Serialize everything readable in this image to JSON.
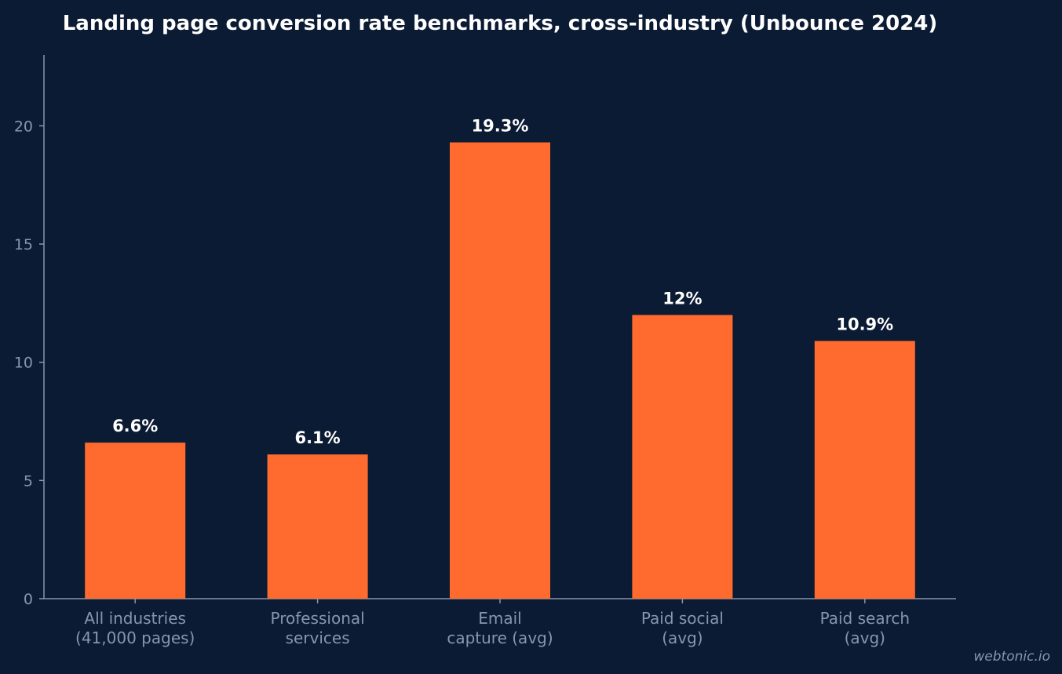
{
  "chart_data": {
    "type": "bar",
    "title": "Landing page conversion rate benchmarks, cross-industry (Unbounce 2024)",
    "categories": [
      [
        "All industries",
        "(41,000 pages)"
      ],
      [
        "Professional",
        "services"
      ],
      [
        "Email",
        "capture (avg)"
      ],
      [
        "Paid social",
        "(avg)"
      ],
      [
        "Paid search",
        "(avg)"
      ]
    ],
    "values": [
      6.6,
      6.1,
      19.3,
      12,
      10.9
    ],
    "value_labels": [
      "6.6%",
      "6.1%",
      "19.3%",
      "12%",
      "10.9%"
    ],
    "ylim": [
      0,
      23
    ],
    "yticks": [
      0,
      5,
      10,
      15,
      20
    ],
    "ytick_labels": [
      "0",
      "5",
      "10",
      "15",
      "20"
    ],
    "grid": false,
    "bar_color": "#ff6b2e"
  },
  "watermark": "webtonic.io"
}
